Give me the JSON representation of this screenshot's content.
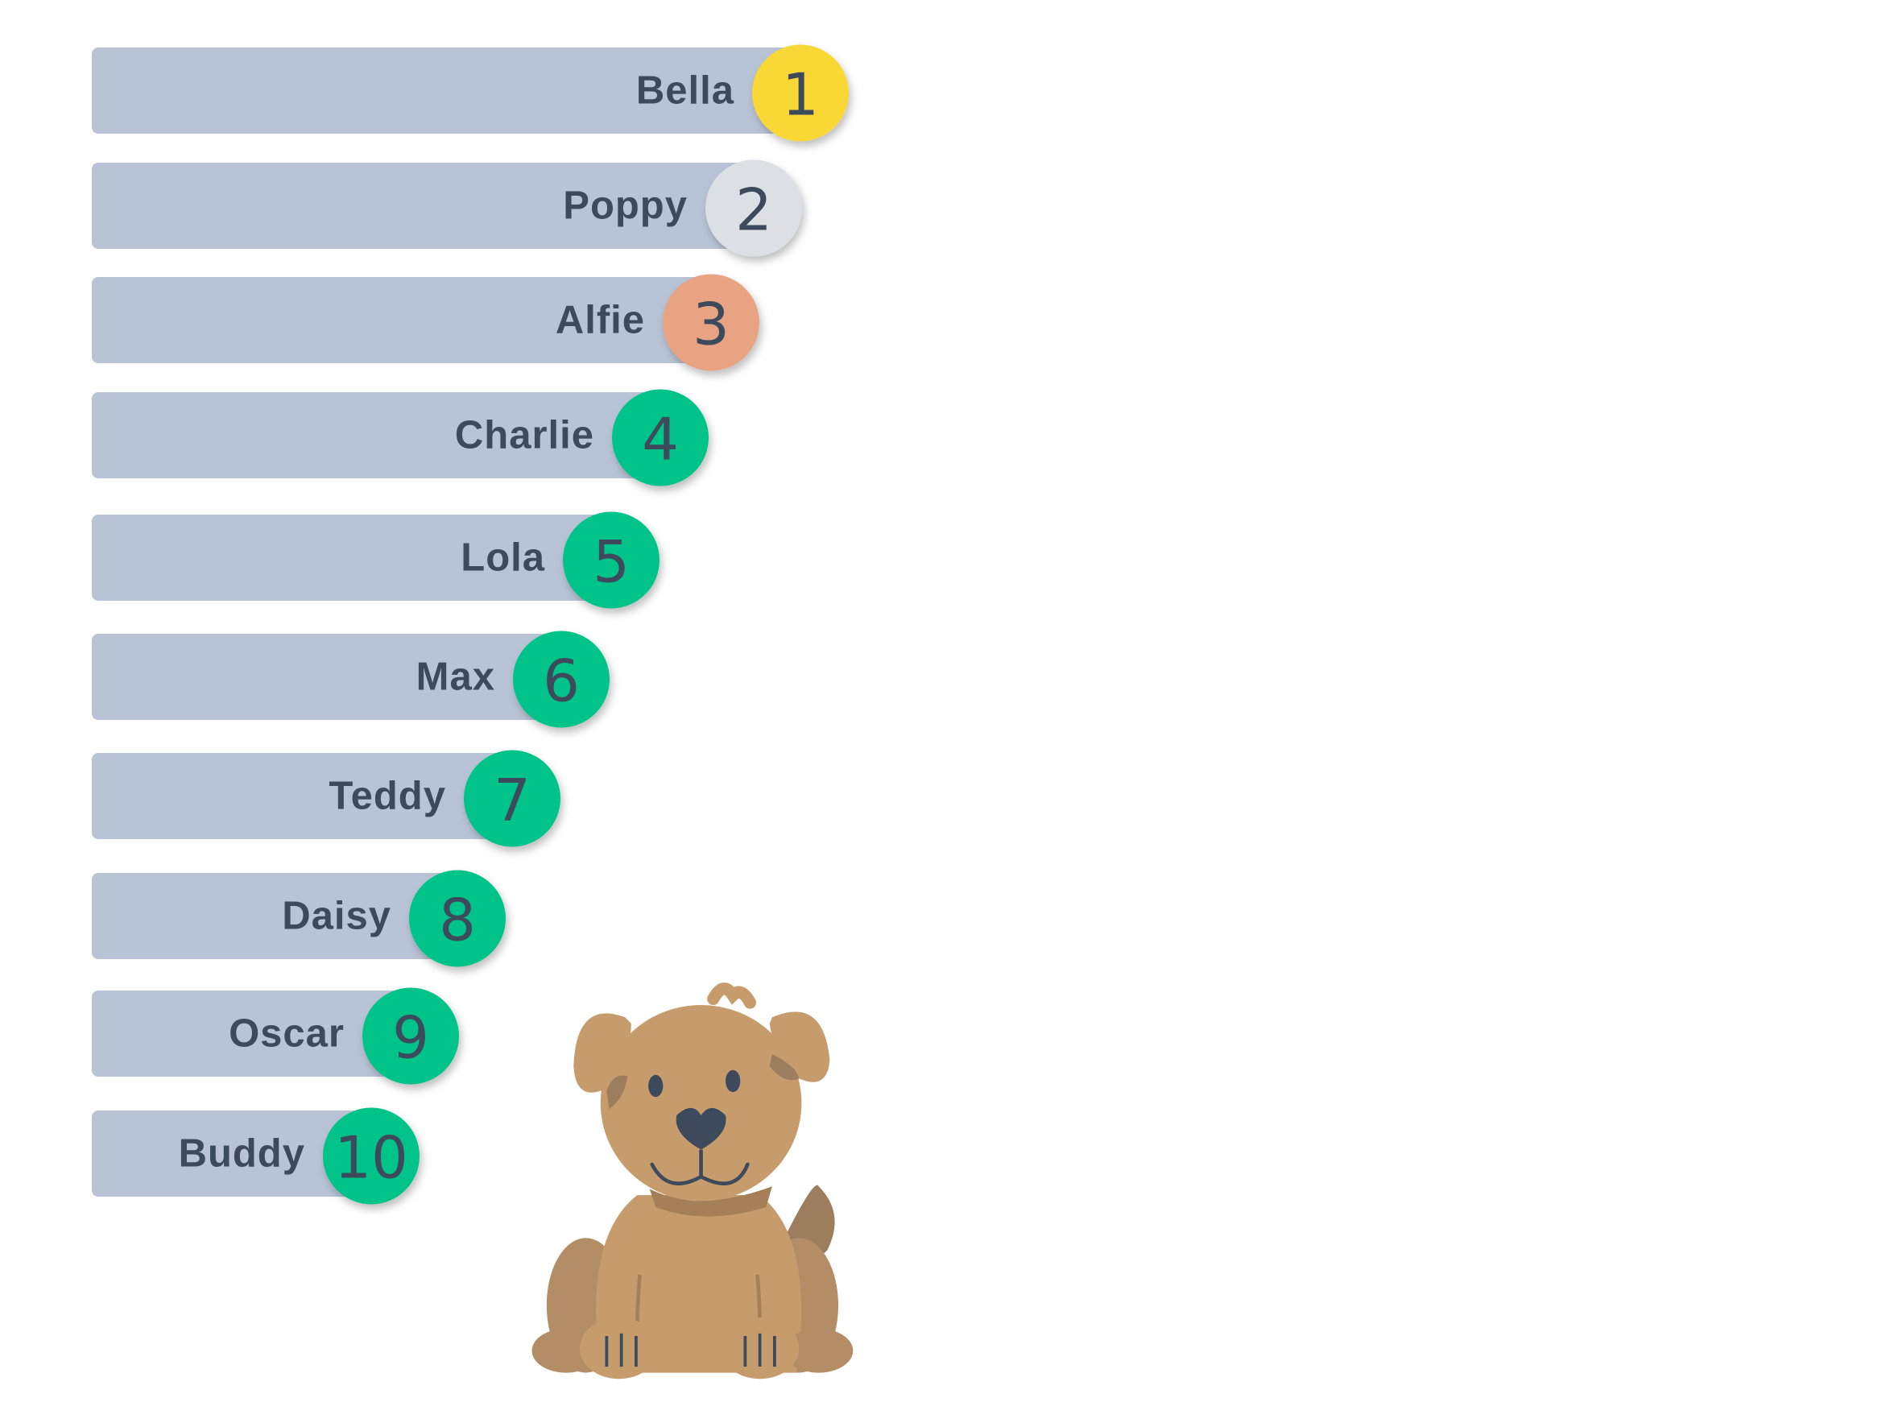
{
  "items": [
    {
      "name": "Bella",
      "rank": "1"
    },
    {
      "name": "Poppy",
      "rank": "2"
    },
    {
      "name": "Alfie",
      "rank": "3"
    },
    {
      "name": "Charlie",
      "rank": "4"
    },
    {
      "name": "Lola",
      "rank": "5"
    },
    {
      "name": "Max",
      "rank": "6"
    },
    {
      "name": "Teddy",
      "rank": "7"
    },
    {
      "name": "Daisy",
      "rank": "8"
    },
    {
      "name": "Oscar",
      "rank": "9"
    },
    {
      "name": "Buddy",
      "rank": "10"
    }
  ]
}
